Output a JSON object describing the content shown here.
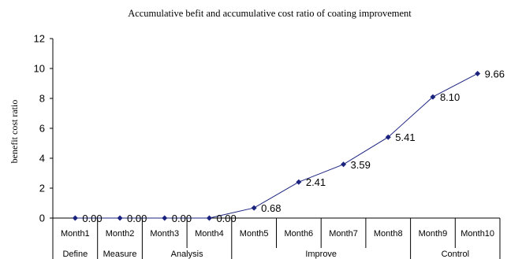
{
  "chart_data": {
    "type": "line",
    "title": "Accumulative befit and accumulative cost ratio of coating improvement",
    "ylabel": "benefit cost ratio",
    "xlabel": "",
    "ylim": [
      0,
      12
    ],
    "yticks": [
      0,
      2,
      4,
      6,
      8,
      10,
      12
    ],
    "grid": false,
    "legend": "none",
    "categories": [
      "Month1",
      "Month2",
      "Month3",
      "Month4",
      "Month5",
      "Month6",
      "Month7",
      "Month8",
      "Month9",
      "Month10"
    ],
    "phases": [
      {
        "label": "Define",
        "span": 1
      },
      {
        "label": "Measure",
        "span": 1
      },
      {
        "label": "Analysis",
        "span": 2
      },
      {
        "label": "Improve",
        "span": 4
      },
      {
        "label": "Control",
        "span": 2
      }
    ],
    "series": [
      {
        "values": [
          0.0,
          0.0,
          0.0,
          0.0,
          0.68,
          2.41,
          3.59,
          5.41,
          8.1,
          9.66
        ],
        "data_labels": [
          "0.00",
          "0.00",
          "0.00",
          "0.00",
          "0.68",
          "2.41",
          "3.59",
          "5.41",
          "8.10",
          "9.66"
        ],
        "color": "#1a237e"
      }
    ]
  }
}
